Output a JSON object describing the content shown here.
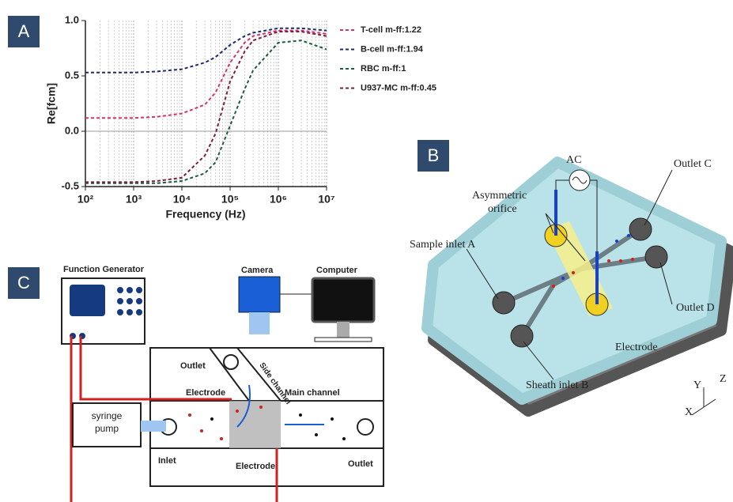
{
  "chart_data": {
    "type": "line",
    "panel": "A",
    "xlabel": "Frequency (Hz)",
    "ylabel": "Re[fcm]",
    "x": [
      100,
      300,
      1000,
      3000,
      10000,
      30000,
      50000,
      100000,
      200000,
      300000,
      1000000,
      3000000,
      10000000
    ],
    "series": [
      {
        "name": "T-cell m-ff:1.22",
        "color": "#d6336c",
        "values": [
          0.12,
          0.12,
          0.12,
          0.13,
          0.16,
          0.24,
          0.35,
          0.62,
          0.8,
          0.86,
          0.91,
          0.91,
          0.88
        ]
      },
      {
        "name": "B-cell m-ff:1.94",
        "color": "#1f2a6b",
        "values": [
          0.53,
          0.53,
          0.53,
          0.54,
          0.56,
          0.62,
          0.67,
          0.78,
          0.86,
          0.89,
          0.93,
          0.93,
          0.91
        ]
      },
      {
        "name": "RBC m-ff:1",
        "color": "#1f5e3a",
        "values": [
          -0.47,
          -0.47,
          -0.47,
          -0.47,
          -0.45,
          -0.38,
          -0.28,
          0.05,
          0.38,
          0.55,
          0.8,
          0.82,
          0.74
        ]
      },
      {
        "name": "U937-MC m-ff:0.45",
        "color": "#7a1f3d",
        "values": [
          -0.46,
          -0.46,
          -0.46,
          -0.45,
          -0.42,
          -0.22,
          -0.02,
          0.45,
          0.72,
          0.82,
          0.9,
          0.9,
          0.86
        ]
      }
    ],
    "xlim": [
      100,
      10000000
    ],
    "log_x": true,
    "xticks": [
      {
        "value": 100,
        "label": "10²"
      },
      {
        "value": 1000,
        "label": "10³"
      },
      {
        "value": 10000,
        "label": "10⁴"
      },
      {
        "value": 100000,
        "label": "10⁵"
      },
      {
        "value": 1000000,
        "label": "10⁶"
      },
      {
        "value": 10000000,
        "label": "10⁷"
      }
    ],
    "ylim": [
      -0.5,
      1.0
    ],
    "yticks": [
      -0.5,
      {
        "value": 0,
        "label": "0.0"
      },
      0.5,
      {
        "value": 1,
        "label": "1.0"
      }
    ],
    "grid": true,
    "minor_grid": true,
    "legend": "right"
  },
  "panel_b": {
    "label": "B",
    "ac": "AC",
    "outlet_c": "Outlet C",
    "orifice": [
      "Asymmetric",
      "orifice"
    ],
    "sample_inlet": "Sample inlet A",
    "outlet_d": "Outlet D",
    "electrode": "Electrode",
    "sheath_inlet": "Sheath inlet B",
    "axes": [
      "Y",
      "Z",
      "X"
    ]
  },
  "panel_c": {
    "label": "C",
    "function_generator": "Function Generator",
    "camera": "Camera",
    "computer": "Computer",
    "outlet_top": "Outlet",
    "side_channel": "Side channel",
    "electrode_top": "Electrode",
    "main_channel": "Main channel",
    "syringe_pump": [
      "syringe",
      "pump"
    ],
    "inlet": "Inlet",
    "electrode_bottom": "Electrode",
    "outlet_right": "Outlet"
  }
}
